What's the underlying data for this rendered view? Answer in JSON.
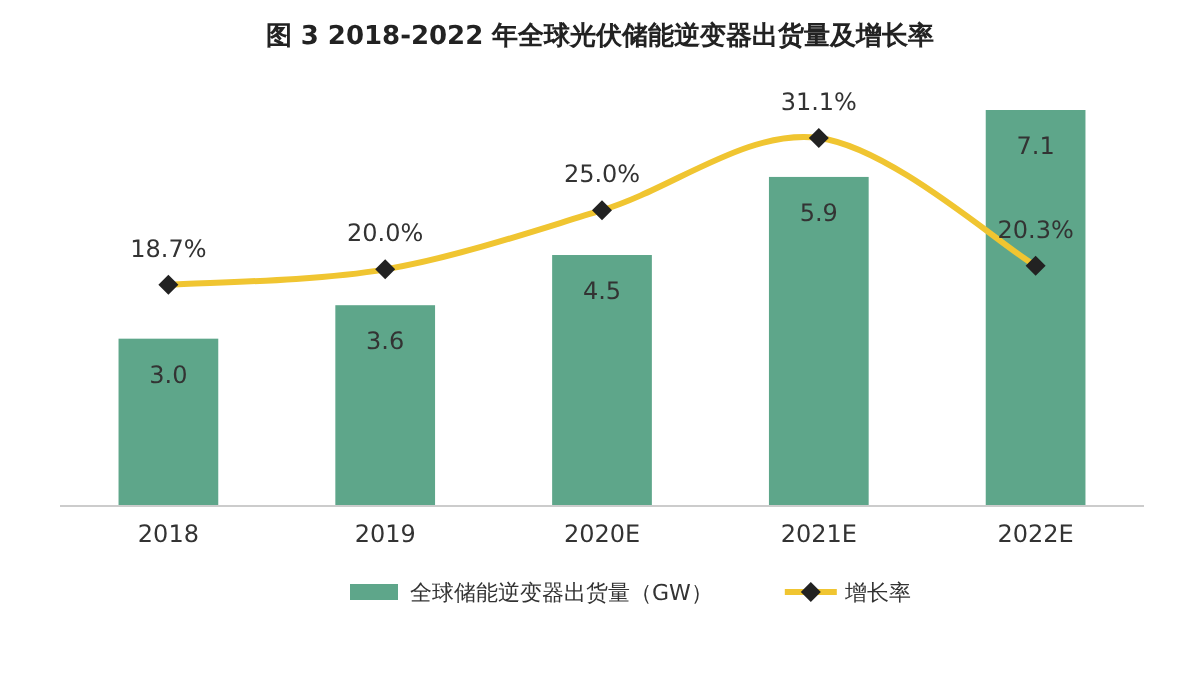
{
  "chart_data": {
    "type": "bar",
    "title": "图 3 2018-2022 年全球光伏储能逆变器出货量及增长率",
    "categories": [
      "2018",
      "2019",
      "2020E",
      "2021E",
      "2022E"
    ],
    "series": [
      {
        "name": "全球储能逆变器出货量（GW）",
        "color": "#5ea68a",
        "values": [
          3.0,
          3.6,
          4.5,
          5.9,
          7.1
        ],
        "value_labels": [
          "3.0",
          "3.6",
          "4.5",
          "5.9",
          "7.1"
        ]
      },
      {
        "name": "增长率",
        "type": "line",
        "axis": "y2",
        "color": "#f0c531",
        "values": [
          18.7,
          20.0,
          25.0,
          31.1,
          20.3
        ],
        "value_labels": [
          "18.7%",
          "20.0%",
          "25.0%",
          "31.1%",
          "20.3%"
        ]
      }
    ],
    "marker": "diamond",
    "legend": "bottom"
  }
}
